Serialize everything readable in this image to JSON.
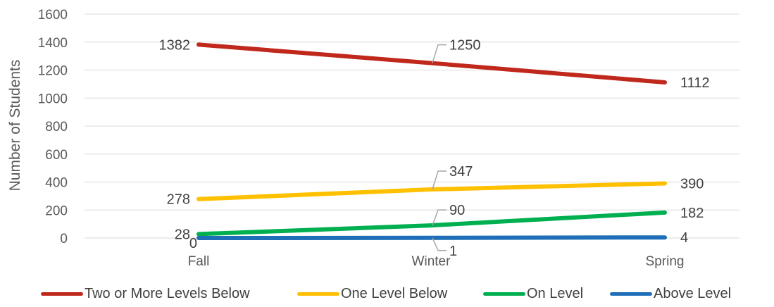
{
  "chart_data": {
    "type": "line",
    "categories": [
      "Fall",
      "Winter",
      "Spring"
    ],
    "ylabel": "Number of Students",
    "xlabel": "",
    "ylim": [
      0,
      1600
    ],
    "yticks": [
      0,
      200,
      400,
      600,
      800,
      1000,
      1200,
      1400,
      1600
    ],
    "grid": true,
    "legend_position": "bottom",
    "series": [
      {
        "name": "Two or More Levels Below",
        "color": "#C0281C",
        "values": [
          1382,
          1250,
          1112
        ]
      },
      {
        "name": "One Level Below",
        "color": "#FFC000",
        "values": [
          278,
          347,
          390
        ]
      },
      {
        "name": "On Level",
        "color": "#00B050",
        "values": [
          28,
          90,
          182
        ]
      },
      {
        "name": "Above Level",
        "color": "#1F6FB8",
        "values": [
          0,
          1,
          4
        ]
      }
    ]
  }
}
